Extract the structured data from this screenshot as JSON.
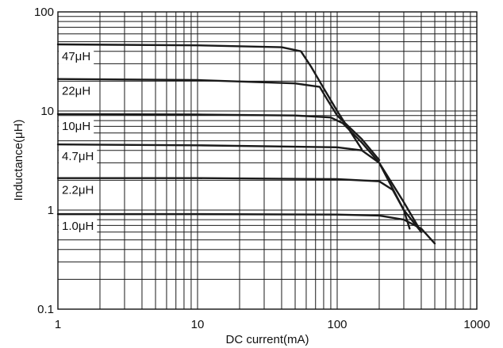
{
  "chart_data": {
    "type": "line",
    "xlabel": "DC current(mA)",
    "ylabel": "Inductance(μH)",
    "x_scale": "log",
    "y_scale": "log",
    "xlim": [
      1,
      1000
    ],
    "ylim": [
      0.1,
      100
    ],
    "x_ticks": [
      1,
      10,
      100,
      1000
    ],
    "x_tick_labels": [
      "1",
      "10",
      "100",
      "1000"
    ],
    "y_ticks": [
      0.1,
      1,
      10,
      100
    ],
    "y_tick_labels": [
      "0.1",
      "1",
      "10",
      "100"
    ],
    "grid": true,
    "series": [
      {
        "name": "47μH",
        "x": [
          1,
          10,
          40,
          55,
          65,
          80,
          100,
          150
        ],
        "y": [
          47,
          46,
          44,
          40,
          28,
          17,
          10,
          4.1
        ]
      },
      {
        "name": "22μH",
        "x": [
          1,
          10,
          50,
          75,
          85,
          100,
          150,
          200
        ],
        "y": [
          21,
          20.5,
          19,
          17.5,
          13,
          9,
          5.2,
          3.2
        ]
      },
      {
        "name": "10μH",
        "x": [
          1,
          10,
          50,
          90,
          110,
          150,
          200,
          300,
          400
        ],
        "y": [
          9.3,
          9.2,
          9.0,
          8.6,
          7.5,
          4.8,
          3.0,
          1.2,
          0.6
        ]
      },
      {
        "name": "4.7μH",
        "x": [
          1,
          10,
          100,
          150,
          200,
          300,
          330
        ],
        "y": [
          4.6,
          4.5,
          4.3,
          4.0,
          3.0,
          1.0,
          0.65
        ]
      },
      {
        "name": "2.2μH",
        "x": [
          1,
          10,
          100,
          200,
          250,
          300,
          400
        ],
        "y": [
          2.1,
          2.1,
          2.05,
          1.95,
          1.6,
          1.0,
          0.6
        ]
      },
      {
        "name": "1.0μH",
        "x": [
          1,
          10,
          100,
          200,
          300,
          400,
          500
        ],
        "y": [
          0.91,
          0.91,
          0.9,
          0.88,
          0.8,
          0.65,
          0.46
        ]
      }
    ]
  }
}
